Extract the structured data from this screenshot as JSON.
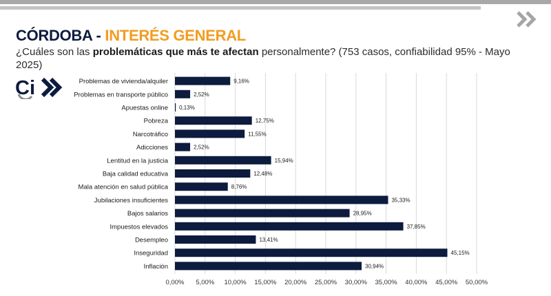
{
  "header": {
    "title_main": "CÓRDOBA",
    "title_sep": " - ",
    "title_accent": "INTERÉS GENERAL",
    "subtitle_pre": "¿Cuáles son las ",
    "subtitle_bold": "problemáticas que más te afectan",
    "subtitle_post": " personalmente? (753 casos, confiabilidad 95% - Mayo 2025)"
  },
  "logo": {
    "text": "Ci",
    "icon": "ci-chevron-logo"
  },
  "nav": {
    "icon": "double-chevron-right-icon"
  },
  "colors": {
    "bar": "#0d1b3e",
    "title_accent": "#f29c1f",
    "title_main": "#0d1b3e",
    "grid": "#d9d9d9"
  },
  "chart_data": {
    "type": "bar",
    "orientation": "horizontal",
    "categories": [
      "Problemas de vivienda/alquiler",
      "Problemas en transporte público",
      "Apuestas online",
      "Pobreza",
      "Narcotráfico",
      "Adicciones",
      "Lentitud en la justicia",
      "Baja calidad educativa",
      "Mala atención en salud pública",
      "Jubilaciones insuficientes",
      "Bajos salarios",
      "Impuestos elevados",
      "Desempleo",
      "Inseguridad",
      "Inflación"
    ],
    "values": [
      9.16,
      2.52,
      0.13,
      12.75,
      11.55,
      2.52,
      15.94,
      12.48,
      8.76,
      35.33,
      28.95,
      37.85,
      13.41,
      45.15,
      30.94
    ],
    "value_labels": [
      "9,16%",
      "2,52%",
      "0,13%",
      "12,75%",
      "11,55%",
      "2,52%",
      "15,94%",
      "12,48%",
      "8,76%",
      "35,33%",
      "28,95%",
      "37,85%",
      "13,41%",
      "45,15%",
      "30,94%"
    ],
    "xlim": [
      0,
      50
    ],
    "xticks": [
      0,
      5,
      10,
      15,
      20,
      25,
      30,
      35,
      40,
      45,
      50
    ],
    "xtick_labels": [
      "0,00%",
      "5,00%",
      "10,00%",
      "15,00%",
      "20,00%",
      "25,00%",
      "30,00%",
      "35,00%",
      "40,00%",
      "45,00%",
      "50,00%"
    ],
    "grid": true,
    "legend": "none"
  }
}
